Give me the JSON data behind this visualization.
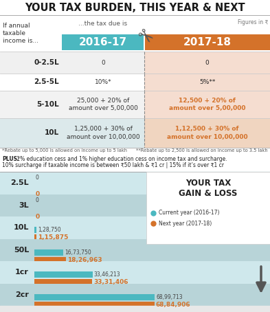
{
  "title": "YOUR TAX BURDEN, THIS YEAR & NEXT",
  "col_header_left": "2016-17",
  "col_header_right": "2017-18",
  "col_header_color_left": "#4bb8c0",
  "col_header_color_right": "#d4722a",
  "right_col_bg": "#f5ddd0",
  "table_rows": [
    {
      "income": "0-2.5L",
      "left": "0",
      "right": "0",
      "bold_right": false
    },
    {
      "income": "2.5-5L",
      "left": "10%*",
      "right": "5%**",
      "bold_right": false
    },
    {
      "income": "5-10L",
      "left": "25,000 + 20% of\namount over 5,00,000",
      "right": "12,500 + 20% of\namount over 5,00,000",
      "bold_right": true
    },
    {
      "income": "10L",
      "left": "1,25,000 + 30% of\namount over 10,00,000",
      "right": "1,12,500 + 30% of\namount over 10,00,000",
      "bold_right": true
    }
  ],
  "row_bgs_left": [
    "#f0f0f0",
    "#ffffff",
    "#f0f0f0",
    "#dce8eb"
  ],
  "row_bgs_right": [
    "#f5ddd0",
    "#f5ddd0",
    "#f5ddd0",
    "#f5ddd0"
  ],
  "note1": "*Rebate up to 5,000 is allowed on income up to 5 lakh",
  "note2": "**Rebate up to 2,500 is allowed on income up to 3.5 lakh",
  "plus_bold": "PLUS:",
  "plus_rest": " 2% education cess and 1% higher education cess on income tax and surcharge.",
  "plus_line2": "10% surcharge if taxable income is between ₹50 lakh & ₹1 cr | 15% if it’s over ₹1 cr",
  "figures_note": "Figures in ₹",
  "bar_labels": [
    "2.5L",
    "3L",
    "10L",
    "50L",
    "1cr",
    "2cr"
  ],
  "bar_current": [
    0,
    0,
    128750,
    1673750,
    3346213,
    6899713
  ],
  "bar_next": [
    0,
    0,
    115875,
    1826963,
    3331406,
    6884906
  ],
  "bar_label_current": [
    "0",
    "0",
    "1,28,750",
    "16,73,750",
    "33,46,213",
    "68,99,713"
  ],
  "bar_label_next": [
    "0",
    "0",
    "1,15,875",
    "18,26,963",
    "33,31,406",
    "68,84,906"
  ],
  "color_current": "#4bb8c0",
  "color_next": "#d4722a",
  "gain_loss_title": "YOUR TAX\nGAIN & LOSS",
  "legend_current": "Current year (2016-17)",
  "legend_next": "Next year (2017-18)",
  "bar_section_bg": "#cfe8ec",
  "bar_row_bgs": [
    "#cfe8ec",
    "#b8d8dd",
    "#cfe8ec",
    "#b8d8dd",
    "#cfe8ec",
    "#b8d8dd"
  ],
  "table_header_label": "If annual\ntaxable\nincome is...",
  "table_col_label": "...the tax due is"
}
